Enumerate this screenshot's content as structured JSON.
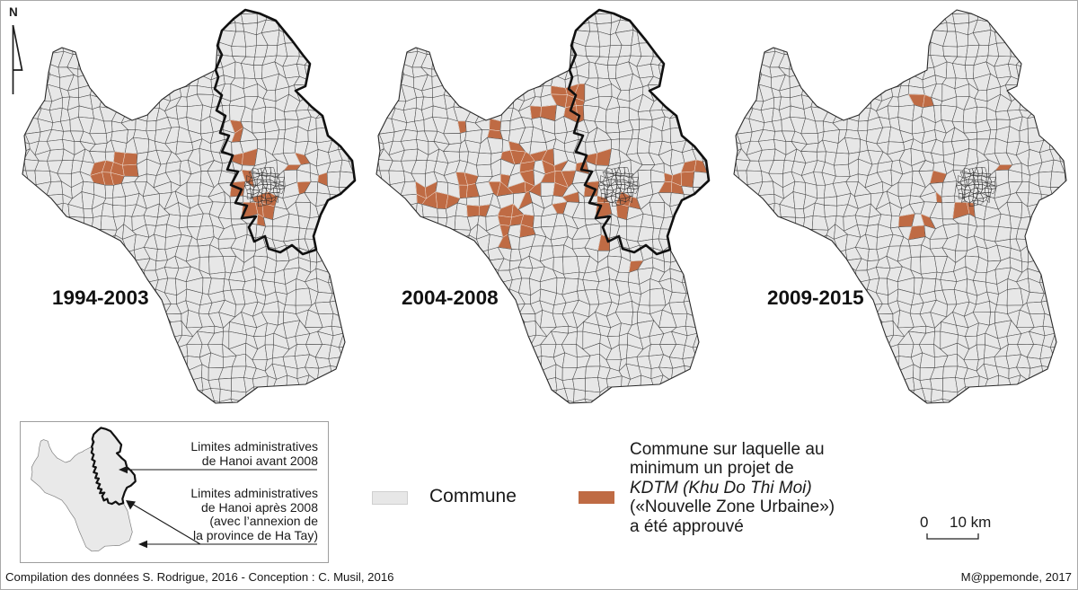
{
  "north": {
    "label": "N"
  },
  "maps": [
    {
      "id": "map-1994-2003",
      "label": "1994-2003",
      "pre2008_boundary": true,
      "kdtm_clusters": [
        [
          119,
          186,
          22
        ],
        [
          262,
          145,
          8
        ],
        [
          263,
          177,
          10
        ],
        [
          267,
          192,
          9
        ],
        [
          257,
          208,
          12
        ],
        [
          263,
          228,
          8
        ],
        [
          283,
          232,
          13
        ],
        [
          293,
          225,
          8
        ],
        [
          320,
          185,
          8
        ],
        [
          333,
          182,
          7
        ],
        [
          353,
          195,
          7
        ],
        [
          328,
          205,
          6
        ],
        [
          305,
          207,
          4
        ]
      ]
    },
    {
      "id": "map-2004-2008",
      "label": "2004-2008",
      "pre2008_boundary": true,
      "kdtm_clusters": [
        [
          233,
          115,
          20
        ],
        [
          247,
          118,
          10
        ],
        [
          203,
          125,
          12
        ],
        [
          160,
          145,
          14
        ],
        [
          117,
          135,
          9
        ],
        [
          180,
          168,
          18
        ],
        [
          207,
          182,
          16
        ],
        [
          220,
          202,
          14
        ],
        [
          187,
          208,
          14
        ],
        [
          160,
          208,
          12
        ],
        [
          120,
          208,
          16
        ],
        [
          90,
          222,
          14
        ],
        [
          73,
          215,
          10
        ],
        [
          133,
          235,
          10
        ],
        [
          167,
          242,
          12
        ],
        [
          187,
          248,
          10
        ],
        [
          213,
          228,
          10
        ],
        [
          233,
          222,
          8
        ],
        [
          253,
          182,
          10
        ],
        [
          263,
          145,
          7
        ],
        [
          267,
          175,
          8
        ],
        [
          257,
          208,
          8
        ],
        [
          273,
          228,
          8
        ],
        [
          290,
          228,
          8
        ],
        [
          300,
          225,
          7
        ],
        [
          347,
          202,
          10
        ],
        [
          363,
          195,
          9
        ],
        [
          373,
          185,
          7
        ],
        [
          327,
          182,
          6
        ],
        [
          267,
          275,
          7
        ],
        [
          310,
          292,
          6
        ],
        [
          163,
          262,
          7
        ],
        [
          150,
          275,
          6
        ]
      ]
    },
    {
      "id": "map-2009-2015",
      "label": "2009-2015",
      "pre2008_boundary": false,
      "kdtm_clusters": [
        [
          227,
          112,
          11
        ],
        [
          322,
          188,
          9
        ],
        [
          243,
          200,
          9
        ],
        [
          246,
          219,
          6
        ],
        [
          233,
          247,
          11
        ],
        [
          207,
          247,
          8
        ],
        [
          222,
          257,
          6
        ],
        [
          277,
          235,
          10
        ],
        [
          288,
          240,
          5
        ]
      ]
    }
  ],
  "inset": {
    "annotation_before": {
      "line1": "Limites administratives",
      "line2": "de Hanoi avant 2008"
    },
    "annotation_after": {
      "line1": "Limites administratives",
      "line2": "de Hanoi après 2008",
      "line3": "(avec l’annexion de",
      "line4": "la province de Ha Tay)"
    }
  },
  "legend": {
    "commune_label": "Commune",
    "commune_color": "#e7e7e7",
    "commune_stroke": "#4b4b4b",
    "kdtm_color": "#bf6b44",
    "kdtm_lines": [
      "Commune sur laquelle au",
      "minimum un projet de",
      "KDTM (Khu Do Thi Moi)",
      "(«Nouvelle Zone Urbaine»)",
      "a été approuvé"
    ]
  },
  "scalebar": {
    "zero": "0",
    "label": "10 km"
  },
  "footer": {
    "left": "Compilation des données S. Rodrigue, 2016 - Conception : C. Musil, 2016",
    "right": "M@ppemonde, 2017"
  }
}
